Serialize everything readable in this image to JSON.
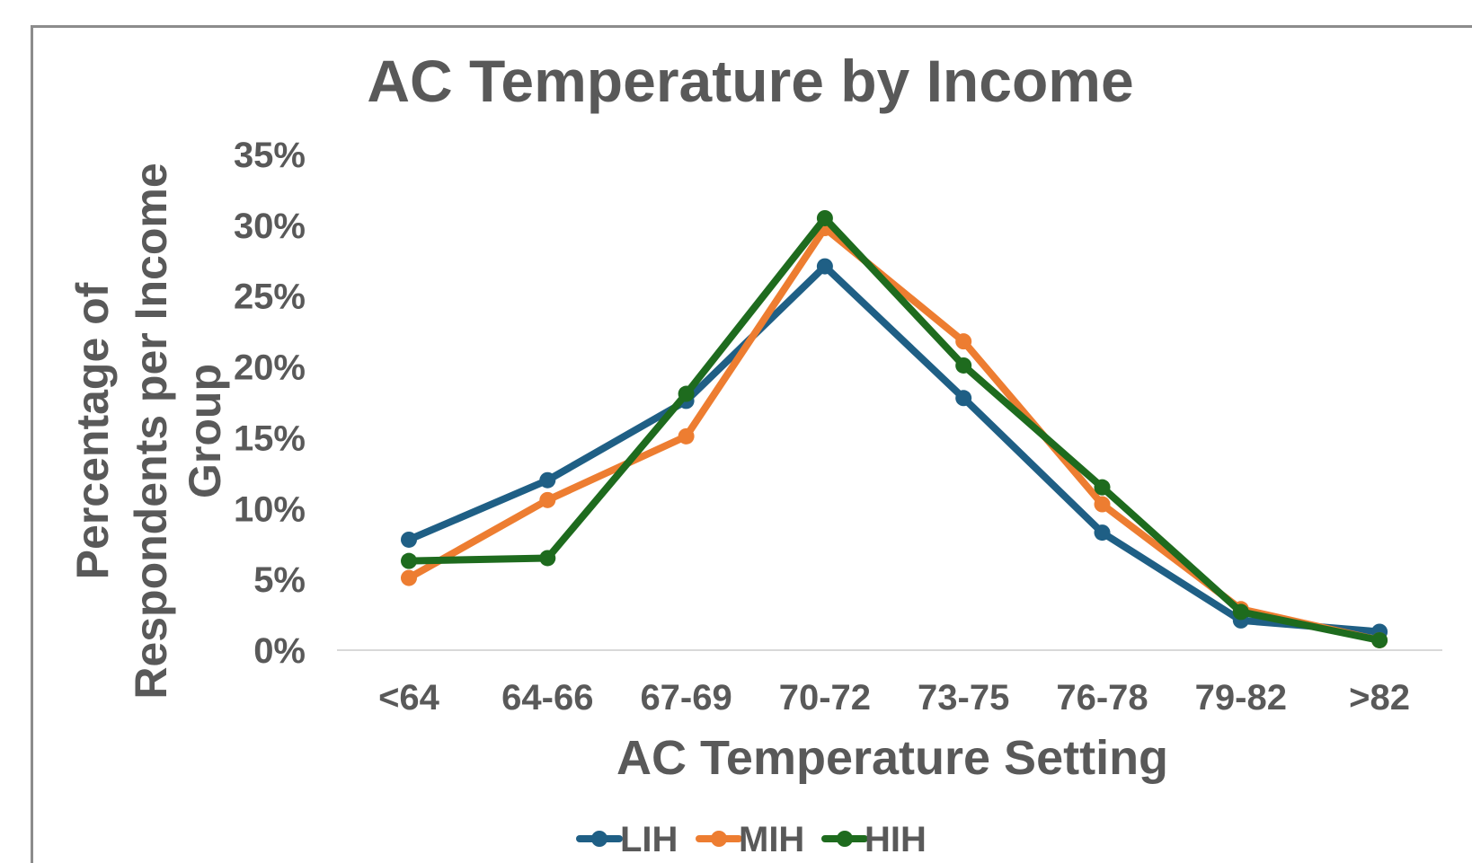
{
  "chart_data": {
    "type": "line",
    "title": "AC Temperature by Income",
    "xlabel": "AC Temperature Setting",
    "ylabel_lines": [
      "Percentage of",
      "Respondents per Income",
      "Group"
    ],
    "categories": [
      "<64",
      "64-66",
      "67-69",
      "70-72",
      "73-75",
      "76-78",
      "79-82",
      ">82"
    ],
    "ylim": [
      0,
      0.35
    ],
    "yticks": [
      0,
      0.05,
      0.1,
      0.15,
      0.2,
      0.25,
      0.3,
      0.35
    ],
    "ytick_labels": [
      "0%",
      "5%",
      "10%",
      "15%",
      "20%",
      "25%",
      "30%",
      "35%"
    ],
    "grid": false,
    "legend": "bottom",
    "series": [
      {
        "name": "LIH",
        "color": "#1f5f85",
        "values": [
          0.078,
          0.12,
          0.176,
          0.271,
          0.178,
          0.083,
          0.021,
          0.013
        ]
      },
      {
        "name": "MIH",
        "color": "#ed7d31",
        "values": [
          0.051,
          0.106,
          0.151,
          0.298,
          0.218,
          0.103,
          0.029,
          0.007
        ]
      },
      {
        "name": "HIH",
        "color": "#1e6b1e",
        "values": [
          0.063,
          0.065,
          0.181,
          0.305,
          0.201,
          0.115,
          0.027,
          0.007
        ]
      }
    ]
  }
}
